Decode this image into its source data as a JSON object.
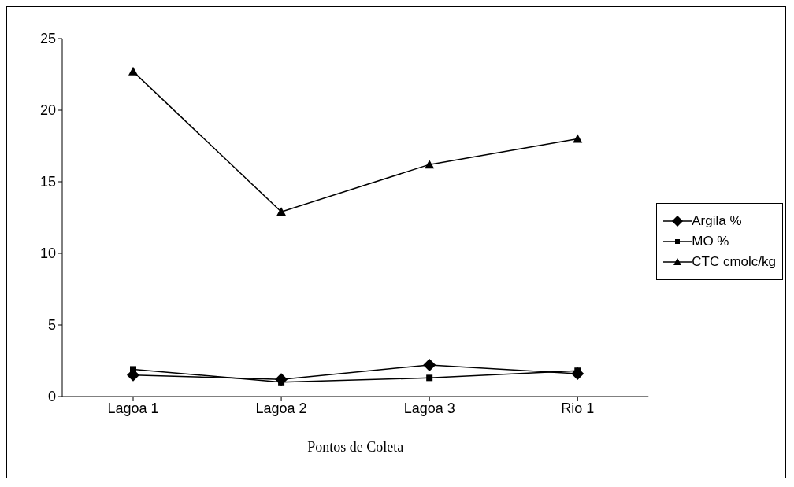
{
  "chart_data": {
    "type": "line",
    "xlabel": "Pontos de Coleta",
    "categories": [
      "Lagoa 1",
      "Lagoa 2",
      "Lagoa 3",
      "Rio 1"
    ],
    "series": [
      {
        "name": "Argila %",
        "color": "#000000",
        "marker": "diamond",
        "values": [
          1.5,
          1.2,
          2.2,
          1.6
        ]
      },
      {
        "name": "MO %",
        "color": "#000000",
        "marker": "square",
        "values": [
          1.9,
          1.0,
          1.3,
          1.8
        ]
      },
      {
        "name": "CTC cmolc/kg",
        "color": "#000000",
        "marker": "triangle",
        "values": [
          22.7,
          12.9,
          16.2,
          18.0
        ]
      }
    ],
    "ylim": [
      0,
      25
    ],
    "yticks": [
      0,
      5,
      10,
      15,
      20,
      25
    ],
    "grid": false,
    "legend": "right"
  }
}
